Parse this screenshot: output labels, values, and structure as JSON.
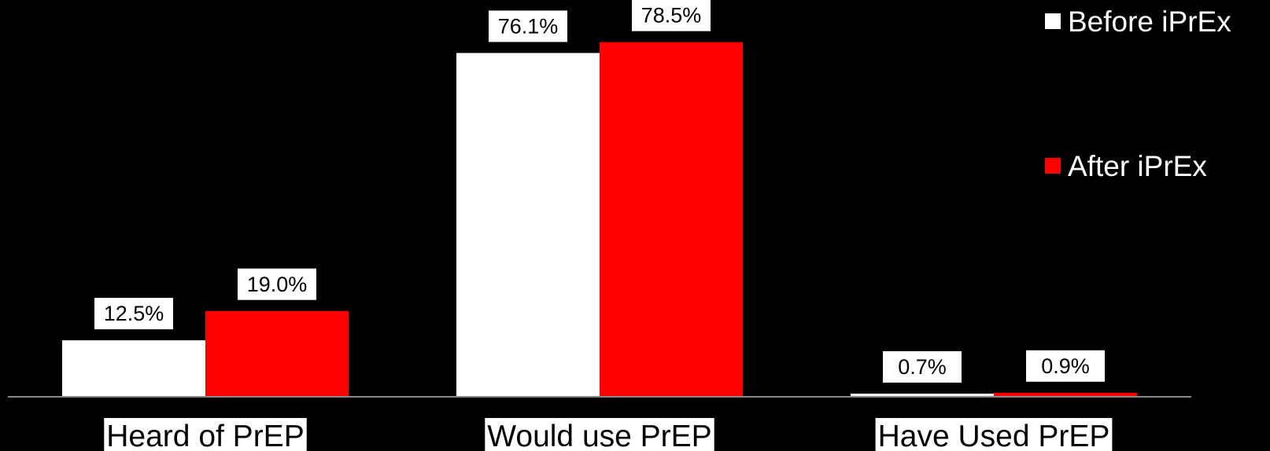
{
  "chart_data": {
    "type": "bar",
    "categories": [
      "Heard of PrEP",
      "Would use PrEP",
      "Have Used PrEP"
    ],
    "series": [
      {
        "name": "Before iPrEx",
        "color": "#ffffff",
        "values": [
          12.5,
          76.1,
          0.7
        ],
        "labels": [
          "12.5%",
          "76.1%",
          "0.7%"
        ]
      },
      {
        "name": "After iPrEx",
        "color": "#ff0000",
        "values": [
          19.0,
          78.5,
          0.9
        ],
        "labels": [
          "19.0%",
          "78.5%",
          "0.9%"
        ]
      }
    ],
    "ylim": [
      0,
      80
    ],
    "grid": false,
    "legend": "top-right",
    "background": "#000000",
    "axis_color": "#888888"
  }
}
